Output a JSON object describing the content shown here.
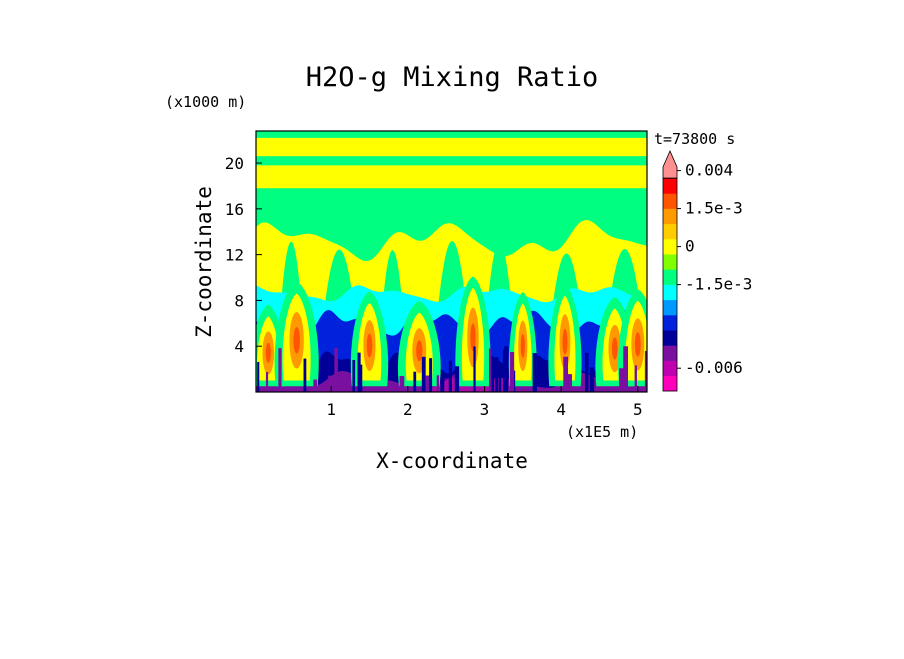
{
  "chart_data": {
    "type": "heatmap",
    "title": "H2O-g Mixing Ratio",
    "xlabel": "X-coordinate",
    "ylabel": "Z-coordinate",
    "x_scale_note": "(x1E5 m)",
    "y_scale_note": "(x1000 m)",
    "time_label": "t=73800 s",
    "xlim": [
      0.02,
      5.12
    ],
    "ylim": [
      0,
      22.8
    ],
    "x_ticks": [
      {
        "value": 1,
        "label": "1"
      },
      {
        "value": 2,
        "label": "2"
      },
      {
        "value": 3,
        "label": "3"
      },
      {
        "value": 4,
        "label": "4"
      },
      {
        "value": 5,
        "label": "5"
      }
    ],
    "y_ticks": [
      {
        "value": 4,
        "label": "4"
      },
      {
        "value": 8,
        "label": "8"
      },
      {
        "value": 12,
        "label": "12"
      },
      {
        "value": 16,
        "label": "16"
      },
      {
        "value": 20,
        "label": "20"
      }
    ],
    "colorbar": {
      "colors": [
        "#ff00bb",
        "#c000b0",
        "#7a10a0",
        "#000099",
        "#0022dd",
        "#0099ff",
        "#00ffff",
        "#00ff80",
        "#80ff00",
        "#ffff00",
        "#ffcc00",
        "#ff9900",
        "#ff5500",
        "#ff0000",
        "#ff9090"
      ],
      "labels": [
        {
          "text": "0.004",
          "band": 14
        },
        {
          "text": "1.5e-3",
          "band": 11.5
        },
        {
          "text": "0",
          "band": 9
        },
        {
          "text": "-1.5e-3",
          "band": 6.5
        },
        {
          "text": "-0.006",
          "band": 1
        }
      ]
    },
    "field_levels": [
      {
        "name": "magenta",
        "color": "#ff00bb"
      },
      {
        "name": "dark-purple",
        "color": "#7a10a0"
      },
      {
        "name": "navy",
        "color": "#000099"
      },
      {
        "name": "blue",
        "color": "#0022dd"
      },
      {
        "name": "cyan",
        "color": "#00ffff"
      },
      {
        "name": "green",
        "color": "#00ff80"
      },
      {
        "name": "yellow",
        "color": "#ffff00"
      },
      {
        "name": "orange",
        "color": "#ff9900"
      },
      {
        "name": "dark-orange",
        "color": "#ff5500"
      }
    ]
  }
}
